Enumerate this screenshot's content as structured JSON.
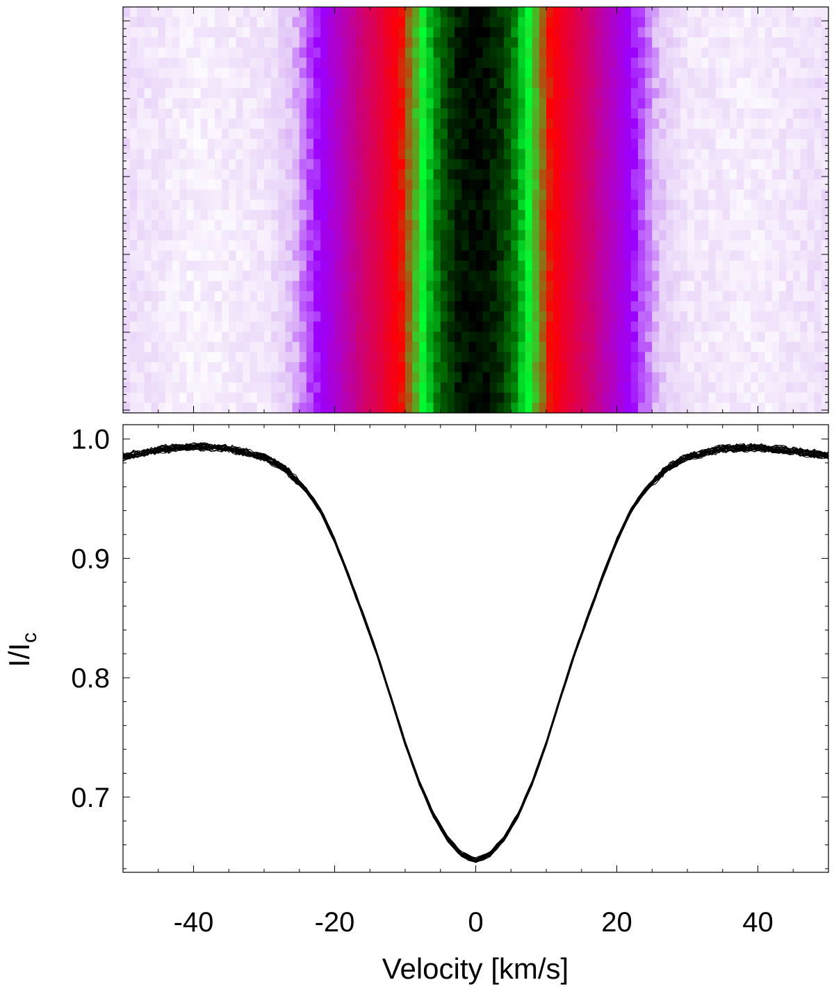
{
  "chart_data": [
    {
      "type": "heatmap",
      "title": "",
      "xlabel": "",
      "ylabel": "",
      "xlim": [
        -50,
        50
      ],
      "colorscale": [
        "#ffffff",
        "#e3c8f7",
        "#9b00ff",
        "#cc0077",
        "#ff0000",
        "#00ff33",
        "#006600",
        "#000000"
      ],
      "description_values": {
        "v": [
          -50,
          -40,
          -30,
          -26,
          -22,
          -18,
          -14,
          -10,
          -8,
          -6,
          -4,
          -2,
          0,
          2,
          4,
          6,
          8,
          10,
          14,
          18,
          22,
          26,
          30,
          40,
          50
        ],
        "intensity": [
          0.985,
          0.993,
          0.989,
          0.975,
          0.945,
          0.89,
          0.82,
          0.745,
          0.71,
          0.68,
          0.66,
          0.65,
          0.647,
          0.65,
          0.66,
          0.68,
          0.71,
          0.745,
          0.82,
          0.89,
          0.945,
          0.975,
          0.989,
          0.992,
          0.985
        ]
      }
    },
    {
      "type": "line",
      "title": "",
      "xlabel": "Velocity [km/s]",
      "ylabel": "I/I",
      "ylabel_sub": "c",
      "xlim": [
        -50,
        50
      ],
      "ylim": [
        0.637,
        1.012
      ],
      "xticks": [
        -40,
        -20,
        0,
        20,
        40
      ],
      "xtick_labels": [
        "-40",
        "-20",
        "0",
        "20",
        "40"
      ],
      "yticks": [
        0.7,
        0.8,
        0.9,
        1.0
      ],
      "ytick_labels": [
        "0.7",
        "0.8",
        "0.9",
        "1.0"
      ],
      "x": [
        -50,
        -45,
        -40,
        -35,
        -30,
        -27,
        -24,
        -22,
        -20,
        -18,
        -16,
        -14,
        -12,
        -10,
        -8,
        -6,
        -4,
        -2,
        0,
        2,
        4,
        6,
        8,
        10,
        12,
        14,
        16,
        18,
        20,
        22,
        24,
        27,
        30,
        35,
        40,
        45,
        50
      ],
      "series_mean": [
        0.985,
        0.991,
        0.994,
        0.992,
        0.985,
        0.975,
        0.957,
        0.94,
        0.915,
        0.885,
        0.853,
        0.82,
        0.783,
        0.745,
        0.712,
        0.685,
        0.665,
        0.652,
        0.647,
        0.652,
        0.665,
        0.685,
        0.712,
        0.745,
        0.783,
        0.82,
        0.853,
        0.885,
        0.915,
        0.94,
        0.957,
        0.975,
        0.985,
        0.992,
        0.993,
        0.99,
        0.986
      ],
      "n_series": 24
    }
  ]
}
